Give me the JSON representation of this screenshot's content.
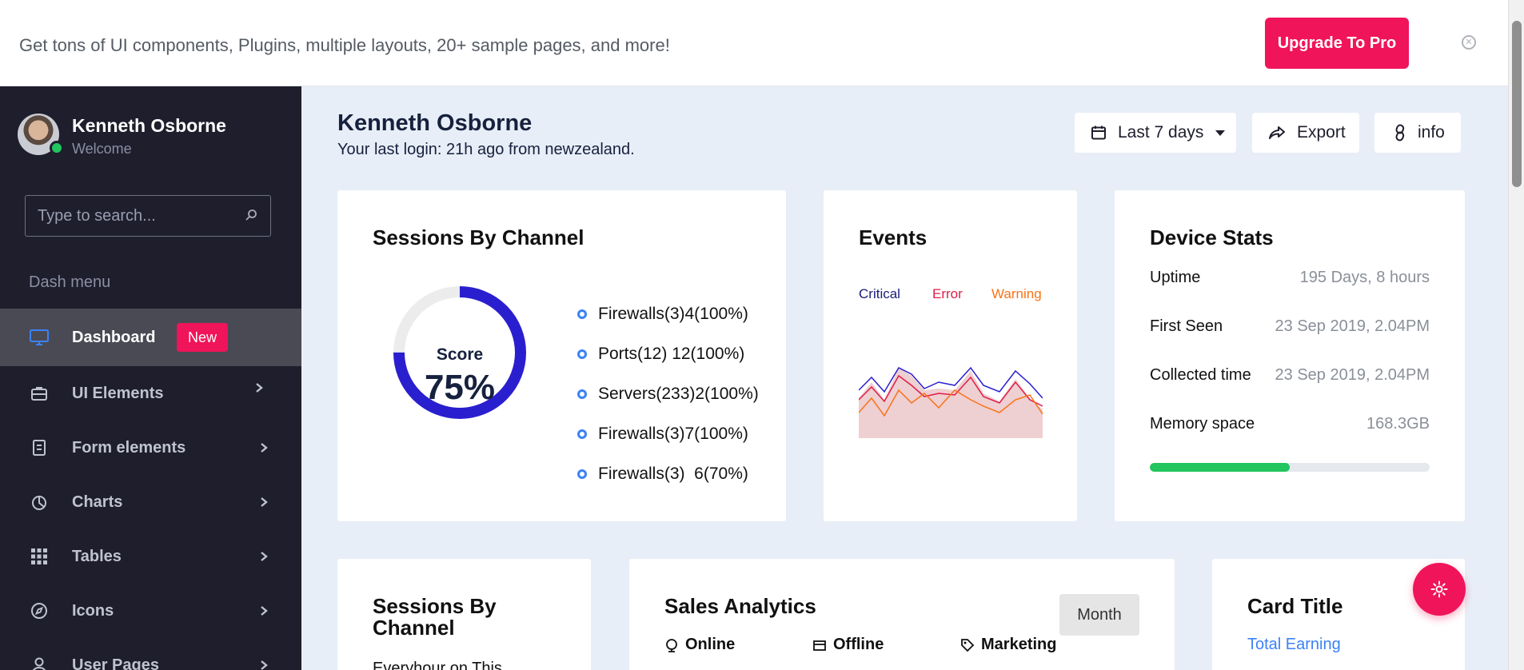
{
  "banner": {
    "text": "Get tons of UI components, Plugins, multiple layouts, 20+ sample pages, and more!",
    "upgrade_label": "Upgrade To Pro"
  },
  "sidebar": {
    "user_name": "Kenneth Osborne",
    "user_subtitle": "Welcome",
    "search_placeholder": "Type to search...",
    "section_label": "Dash menu",
    "items": [
      {
        "label": "Dashboard",
        "icon": "monitor-icon",
        "badge": "New",
        "active": true
      },
      {
        "label": "UI Elements",
        "icon": "briefcase-icon"
      },
      {
        "label": "Form elements",
        "icon": "form-icon"
      },
      {
        "label": "Charts",
        "icon": "pie-chart-icon"
      },
      {
        "label": "Tables",
        "icon": "grid-icon"
      },
      {
        "label": "Icons",
        "icon": "compass-icon"
      },
      {
        "label": "User Pages",
        "icon": "user-icon"
      }
    ]
  },
  "header": {
    "title": "Kenneth Osborne",
    "subtitle": "Your last login: 21h ago from newzealand.",
    "range_label": "Last 7 days",
    "export_label": "Export",
    "info_label": "info"
  },
  "sessions_card": {
    "title": "Sessions By Channel",
    "score_label": "Score",
    "score_value": "75%",
    "score_fraction": 0.75,
    "legend": [
      "Firewalls(3)4(100%)",
      "Ports(12) 12(100%)",
      "Servers(233)2(100%)",
      "Firewalls(3)7(100%)",
      "Firewalls(3)  6(70%)"
    ]
  },
  "events_card": {
    "title": "Events",
    "legend": [
      {
        "label": "Critical",
        "color": "#1a1a7a"
      },
      {
        "label": "Error",
        "color": "#e11d48"
      },
      {
        "label": "Warning",
        "color": "#f97316"
      }
    ]
  },
  "device_card": {
    "title": "Device Stats",
    "stats": [
      {
        "label": "Uptime",
        "value": "195 Days, 8 hours"
      },
      {
        "label": "First Seen",
        "value": "23 Sep 2019, 2.04PM"
      },
      {
        "label": "Collected time",
        "value": "23 Sep 2019, 2.04PM"
      },
      {
        "label": "Memory space",
        "value": "168.3GB"
      }
    ],
    "memory_fraction": 0.5
  },
  "sessions_card2": {
    "title": "Sessions By Channel",
    "text": "Everyhour on This"
  },
  "sales_card": {
    "title": "Sales Analytics",
    "period_label": "Month",
    "stats": [
      {
        "label": "Online",
        "icon": "globe-icon"
      },
      {
        "label": "Offline",
        "icon": "store-icon"
      },
      {
        "label": "Marketing",
        "icon": "tag-icon"
      }
    ]
  },
  "card_title_card": {
    "title": "Card Title",
    "link": "Total Earning"
  },
  "colors": {
    "accent": "#f0145a",
    "sidebar_bg": "#1e1e2d",
    "donut": "#2a1fcf",
    "progress": "#22c55e"
  }
}
